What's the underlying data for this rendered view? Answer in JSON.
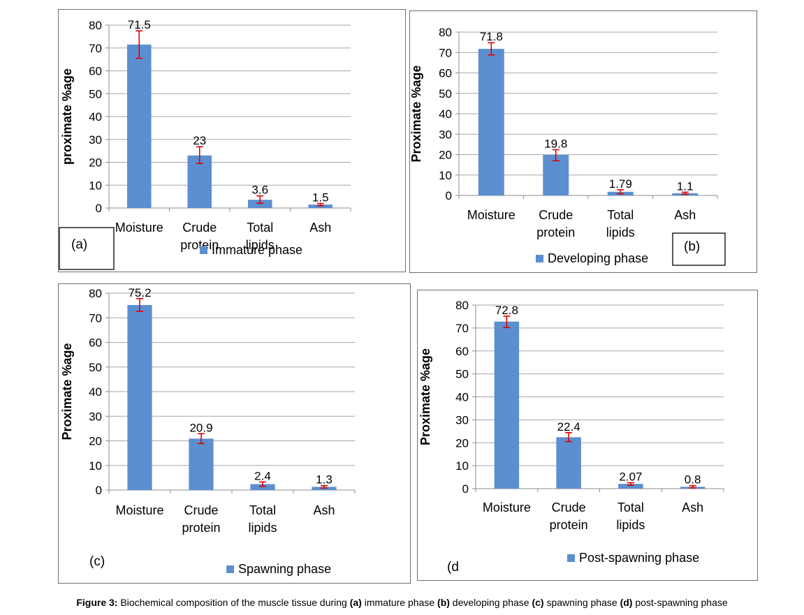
{
  "figure": {
    "caption": {
      "label": "Figure 3:",
      "t1": " Biochemical composition of the muscle tissue during ",
      "a": "(a)",
      "t2": " immature phase ",
      "b": "(b)",
      "t3": " developing phase ",
      "c": "(c)",
      "t4": " spawning phase ",
      "d": "(d)",
      "t5": " post-spawning phase"
    }
  },
  "chart_data": [
    {
      "type": "bar",
      "panel_label": "(a)",
      "ylabel": "proximate %age",
      "ylim": [
        0,
        80
      ],
      "yticks": [
        0,
        10,
        20,
        30,
        40,
        50,
        60,
        70,
        80
      ],
      "categories": [
        [
          "Moisture"
        ],
        [
          "Crude",
          "protein"
        ],
        [
          "Total",
          "lipids"
        ],
        [
          "Ash"
        ]
      ],
      "series": [
        {
          "name": "Immature phase",
          "values": [
            71.5,
            23,
            3.6,
            1.5
          ],
          "color": "#5b8fd0"
        }
      ],
      "data_labels": [
        "71.5",
        "23",
        "3.6",
        "1.5"
      ],
      "error_low": [
        65.5,
        19.5,
        2.1,
        1.0
      ],
      "error_high": [
        77.5,
        26.8,
        5.3,
        2.0
      ],
      "error_color": "#e00000",
      "gridlines": true,
      "legend": "bottom"
    },
    {
      "type": "bar",
      "panel_label": "(b)",
      "ylabel": "Proximate %age",
      "ylim": [
        0,
        80
      ],
      "yticks": [
        0,
        10,
        20,
        30,
        40,
        50,
        60,
        70,
        80
      ],
      "categories": [
        [
          "Moisture"
        ],
        [
          "Crude",
          "protein"
        ],
        [
          "Total",
          "lipids"
        ],
        [
          "Ash"
        ]
      ],
      "series": [
        {
          "name": "Developing phase",
          "values": [
            71.8,
            19.8,
            1.79,
            1.1
          ],
          "color": "#5b8fd0"
        }
      ],
      "data_labels": [
        "71.8",
        "19.8",
        "1.79",
        "1.1"
      ],
      "error_low": [
        68.8,
        17.0,
        0.8,
        0.6
      ],
      "error_high": [
        74.8,
        22.4,
        2.8,
        1.6
      ],
      "error_color": "#e00000",
      "gridlines": true,
      "legend": "bottom"
    },
    {
      "type": "bar",
      "panel_label": "(c)",
      "ylabel": "Proximate %age",
      "ylim": [
        0,
        80
      ],
      "yticks": [
        0,
        10,
        20,
        30,
        40,
        50,
        60,
        70,
        80
      ],
      "categories": [
        [
          "Moisture"
        ],
        [
          "Crude",
          "protein"
        ],
        [
          "Total",
          "lipids"
        ],
        [
          "Ash"
        ]
      ],
      "series": [
        {
          "name": "Spawning phase",
          "values": [
            75.2,
            20.9,
            2.4,
            1.3
          ],
          "color": "#5b8fd0"
        }
      ],
      "data_labels": [
        "75.2",
        "20.9",
        "2.4",
        "1.3"
      ],
      "error_low": [
        72.6,
        18.9,
        1.5,
        0.8
      ],
      "error_high": [
        77.8,
        22.9,
        3.3,
        1.8
      ],
      "error_color": "#e00000",
      "gridlines": true,
      "legend": "bottom"
    },
    {
      "type": "bar",
      "panel_label": "(d",
      "ylabel": "Proximate %age",
      "ylim": [
        0,
        80
      ],
      "yticks": [
        0,
        10,
        20,
        30,
        40,
        50,
        60,
        70,
        80
      ],
      "categories": [
        [
          "Moisture"
        ],
        [
          "Crude",
          "protein"
        ],
        [
          "Total",
          "lipids"
        ],
        [
          "Ash"
        ]
      ],
      "series": [
        {
          "name": "Post-spawning phase",
          "values": [
            72.8,
            22.4,
            2.07,
            0.8
          ],
          "color": "#5b8fd0"
        }
      ],
      "data_labels": [
        "72.8",
        "22.4",
        "2.07",
        "0.8"
      ],
      "error_low": [
        70.2,
        20.5,
        1.5,
        0.3
      ],
      "error_high": [
        75.2,
        24.4,
        2.6,
        1.3
      ],
      "error_color": "#e00000",
      "gridlines": true,
      "legend": "bottom"
    }
  ]
}
